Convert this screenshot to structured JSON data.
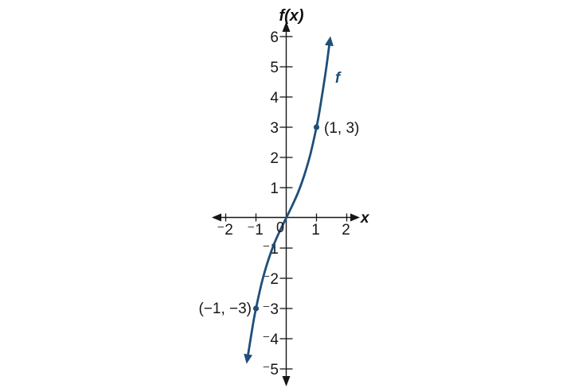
{
  "chart_data": {
    "type": "line",
    "title": "f(x)",
    "xlabel": "x",
    "curve_label": "f",
    "origin_label": "0",
    "grid": false,
    "legend_position": "none",
    "axis_color": "#161616",
    "curve_color": "#1f4e79",
    "xlim": [
      -2.5,
      2.5
    ],
    "ylim": [
      -5.5,
      6.5
    ],
    "x_ticks": [
      {
        "v": -2,
        "label": "⁻2"
      },
      {
        "v": -1,
        "label": "⁻1"
      },
      {
        "v": 1,
        "label": "1"
      },
      {
        "v": 2,
        "label": "2"
      }
    ],
    "y_ticks": [
      {
        "v": 6,
        "label": "6"
      },
      {
        "v": 5,
        "label": "5"
      },
      {
        "v": 4,
        "label": "4"
      },
      {
        "v": 3,
        "label": "3"
      },
      {
        "v": 2,
        "label": "2"
      },
      {
        "v": 1,
        "label": "1"
      },
      {
        "v": -1,
        "label": "⁻1"
      },
      {
        "v": -2,
        "label": "⁻2"
      },
      {
        "v": -3,
        "label": "⁻3"
      },
      {
        "v": -4,
        "label": "⁻4"
      },
      {
        "v": -5,
        "label": "⁻5"
      }
    ],
    "series": [
      {
        "name": "f",
        "samples": [
          [
            -1.26,
            -4.52
          ],
          [
            -1.1,
            -3.53
          ],
          [
            -1.0,
            -3.0
          ],
          [
            -0.8,
            -2.11
          ],
          [
            -0.6,
            -1.42
          ],
          [
            -0.4,
            -0.86
          ],
          [
            -0.2,
            -0.41
          ],
          [
            0.0,
            0.0
          ],
          [
            0.2,
            0.41
          ],
          [
            0.4,
            0.86
          ],
          [
            0.6,
            1.42
          ],
          [
            0.8,
            2.11
          ],
          [
            1.0,
            3.0
          ],
          [
            1.1,
            3.53
          ],
          [
            1.3,
            4.8
          ],
          [
            1.42,
            5.7
          ]
        ]
      }
    ],
    "marked_points": [
      {
        "x": 1,
        "y": 3,
        "label": "(1, 3)",
        "label_side": "right"
      },
      {
        "x": -1,
        "y": -3,
        "label": "(−1, −3)",
        "label_side": "left"
      }
    ]
  }
}
